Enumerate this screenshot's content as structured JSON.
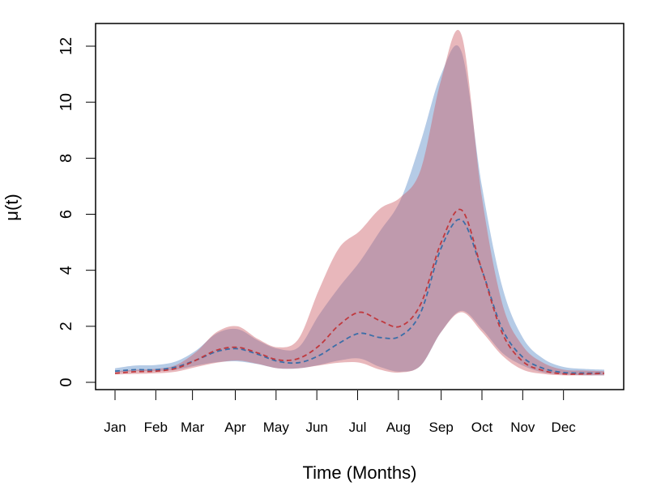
{
  "chart_data": {
    "type": "area",
    "xlabel": "Time (Months)",
    "ylabel": "μ(t)",
    "xlim": [
      0,
      12.6
    ],
    "ylim": [
      0,
      12.5
    ],
    "x_ticks": [
      {
        "label": "Jan",
        "value": 0
      },
      {
        "label": "Feb",
        "value": 1
      },
      {
        "label": "Mar",
        "value": 1.9
      },
      {
        "label": "Apr",
        "value": 2.95
      },
      {
        "label": "May",
        "value": 3.95
      },
      {
        "label": "Jun",
        "value": 4.95
      },
      {
        "label": "Jul",
        "value": 5.95
      },
      {
        "label": "Aug",
        "value": 6.95
      },
      {
        "label": "Sep",
        "value": 8.0
      },
      {
        "label": "Oct",
        "value": 9.0
      },
      {
        "label": "Nov",
        "value": 10.0
      },
      {
        "label": "Dec",
        "value": 11.0
      }
    ],
    "y_ticks": [
      0,
      2,
      4,
      6,
      8,
      10,
      12
    ],
    "x": [
      0,
      0.5,
      1,
      1.5,
      2,
      2.5,
      3,
      3.5,
      4,
      4.5,
      5,
      5.5,
      6,
      6.5,
      7,
      7.5,
      8,
      8.5,
      9,
      9.5,
      10,
      10.5,
      11,
      11.5,
      12
    ],
    "series": [
      {
        "name": "blue",
        "color": "#3b6ea8",
        "fill": "rgba(90,140,200,0.45)",
        "mean": [
          0.4,
          0.45,
          0.45,
          0.55,
          0.8,
          1.1,
          1.2,
          1.0,
          0.75,
          0.7,
          0.95,
          1.4,
          1.75,
          1.6,
          1.65,
          2.5,
          4.8,
          5.8,
          4.0,
          1.9,
          0.9,
          0.5,
          0.35,
          0.33,
          0.33
        ],
        "lower": [
          0.35,
          0.4,
          0.4,
          0.45,
          0.6,
          0.72,
          0.75,
          0.65,
          0.5,
          0.5,
          0.62,
          0.78,
          0.85,
          0.55,
          0.38,
          0.6,
          1.8,
          2.55,
          1.9,
          1.05,
          0.6,
          0.35,
          0.28,
          0.25,
          0.25
        ],
        "upper": [
          0.5,
          0.6,
          0.62,
          0.75,
          1.15,
          1.75,
          1.9,
          1.5,
          1.2,
          1.25,
          2.4,
          3.4,
          4.3,
          5.4,
          6.5,
          8.6,
          11.0,
          11.8,
          7.0,
          3.4,
          1.6,
          0.85,
          0.55,
          0.48,
          0.45
        ]
      },
      {
        "name": "red",
        "color": "#c0393e",
        "fill": "rgba(205,95,105,0.45)",
        "mean": [
          0.32,
          0.38,
          0.4,
          0.5,
          0.8,
          1.15,
          1.25,
          1.05,
          0.8,
          0.85,
          1.3,
          2.05,
          2.5,
          2.2,
          2.0,
          2.8,
          5.0,
          6.15,
          4.0,
          1.75,
          0.75,
          0.42,
          0.3,
          0.3,
          0.32
        ],
        "lower": [
          0.28,
          0.3,
          0.32,
          0.38,
          0.55,
          0.7,
          0.78,
          0.66,
          0.5,
          0.5,
          0.6,
          0.7,
          0.7,
          0.45,
          0.35,
          0.6,
          1.8,
          2.5,
          1.8,
          0.95,
          0.45,
          0.3,
          0.25,
          0.25,
          0.25
        ],
        "upper": [
          0.4,
          0.45,
          0.48,
          0.62,
          1.1,
          1.8,
          2.0,
          1.55,
          1.25,
          1.55,
          3.3,
          4.8,
          5.4,
          6.2,
          6.6,
          7.6,
          10.8,
          12.4,
          6.6,
          2.8,
          1.3,
          0.7,
          0.45,
          0.42,
          0.4
        ]
      }
    ]
  }
}
